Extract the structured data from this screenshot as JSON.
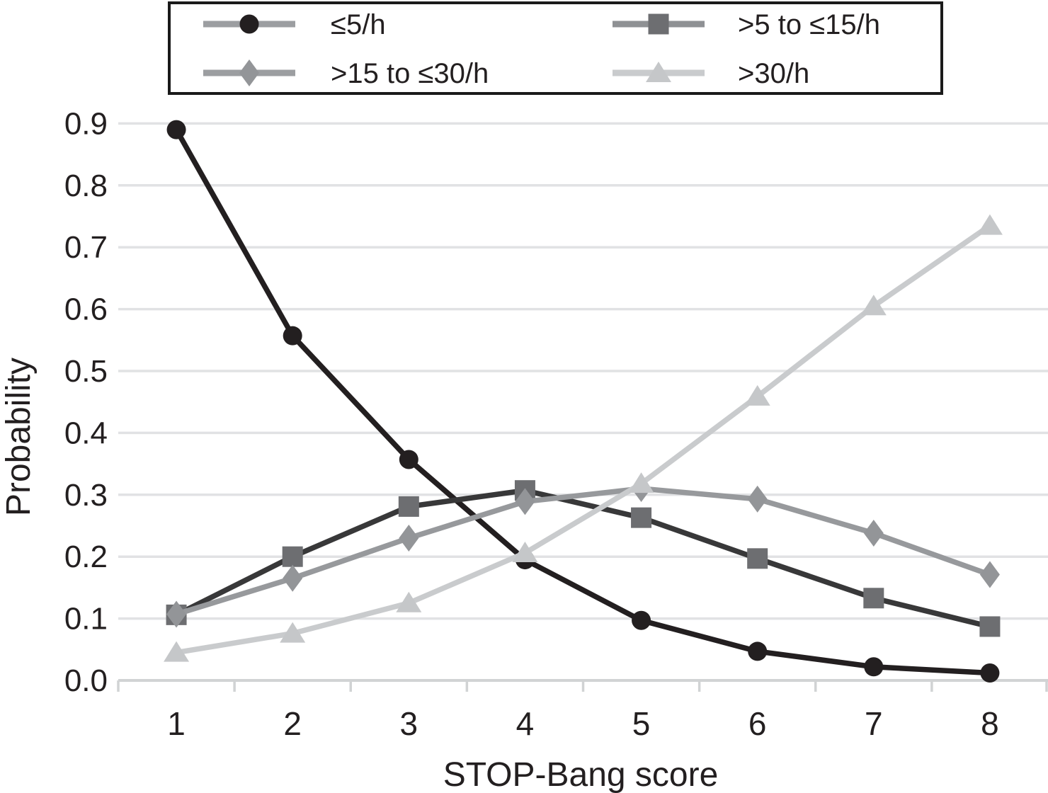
{
  "colors": {
    "text": "#231f20",
    "grid": "#e1e2e4",
    "axis": "#d1d3d4",
    "legend_border": "#1a1a1a",
    "background": "#ffffff"
  },
  "chart_data": {
    "type": "line",
    "title": "",
    "xlabel": "STOP-Bang score",
    "ylabel": "Probability",
    "x": [
      1,
      2,
      3,
      4,
      5,
      6,
      7,
      8
    ],
    "x_tick_labels": [
      "1",
      "2",
      "3",
      "4",
      "5",
      "6",
      "7",
      "8"
    ],
    "y_ticks": [
      {
        "value": 0.0,
        "label": "0.0"
      },
      {
        "value": 0.1,
        "label": "0.1"
      },
      {
        "value": 0.2,
        "label": "0.2"
      },
      {
        "value": 0.3,
        "label": "0.3"
      },
      {
        "value": 0.4,
        "label": "0.4"
      },
      {
        "value": 0.5,
        "label": "0.5"
      },
      {
        "value": 0.6,
        "label": "0.6"
      },
      {
        "value": 0.7,
        "label": "0.7"
      },
      {
        "value": 0.8,
        "label": "0.8"
      },
      {
        "value": 0.9,
        "label": "0.9"
      }
    ],
    "ylim": [
      0,
      0.94
    ],
    "grid": true,
    "legend_position": "top",
    "series": [
      {
        "name": "≤5/h",
        "marker": "circle",
        "line_color": "#231f20",
        "marker_color": "#231f20",
        "legend_line_color": "#9c9ea1",
        "values": [
          0.89,
          0.557,
          0.357,
          0.195,
          0.097,
          0.047,
          0.022,
          0.012
        ]
      },
      {
        "name": ">5 to ≤15/h",
        "marker": "square",
        "line_color": "#383839",
        "marker_color": "#6d6e71",
        "legend_line_color": "#8f9194",
        "values": [
          0.106,
          0.2,
          0.281,
          0.307,
          0.263,
          0.197,
          0.133,
          0.087
        ]
      },
      {
        "name": ">15 to ≤30/h",
        "marker": "diamond",
        "line_color": "#97999c",
        "marker_color": "#939598",
        "legend_line_color": "#9c9ea1",
        "values": [
          0.107,
          0.165,
          0.23,
          0.289,
          0.31,
          0.293,
          0.238,
          0.171
        ]
      },
      {
        "name": ">30/h",
        "marker": "triangle",
        "line_color": "#c9cbcd",
        "marker_color": "#c5c7c9",
        "legend_line_color": "#c9cbcd",
        "values": [
          0.045,
          0.076,
          0.125,
          0.206,
          0.318,
          0.459,
          0.605,
          0.735
        ]
      }
    ]
  }
}
